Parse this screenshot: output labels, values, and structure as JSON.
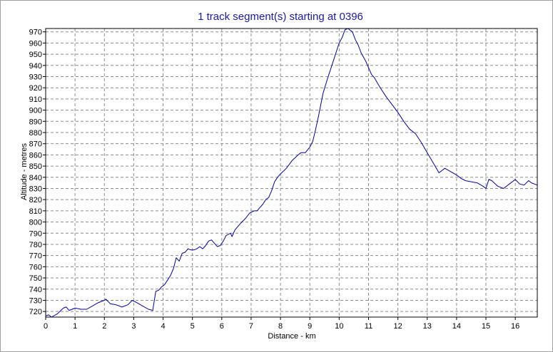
{
  "chart_data": {
    "type": "line",
    "title": "1 track segment(s) starting at 0396",
    "xlabel": "Distance - km",
    "ylabel": "Altitude - metres",
    "xlim": [
      0,
      16.75
    ],
    "ylim": [
      715,
      973
    ],
    "x_ticks": [
      0,
      1,
      2,
      3,
      4,
      5,
      6,
      7,
      8,
      9,
      10,
      11,
      12,
      13,
      14,
      15,
      16
    ],
    "y_ticks": [
      720,
      730,
      740,
      750,
      760,
      770,
      780,
      790,
      800,
      810,
      820,
      830,
      840,
      850,
      860,
      870,
      880,
      890,
      900,
      910,
      920,
      930,
      940,
      950,
      960,
      970
    ],
    "grid": true,
    "colors": {
      "line": "#0000aa",
      "title": "#1a1aa8",
      "grid": "#8c8c8c",
      "axis": "#000000"
    },
    "series": [
      {
        "x": [
          0.0,
          0.1,
          0.2,
          0.4,
          0.6,
          0.7,
          0.8,
          1.0,
          1.2,
          1.4,
          1.6,
          1.8,
          2.0,
          2.05,
          2.2,
          2.4,
          2.6,
          2.8,
          2.95,
          3.1,
          3.3,
          3.5,
          3.65,
          3.75,
          3.85,
          3.95,
          4.05,
          4.15,
          4.25,
          4.35,
          4.45,
          4.55,
          4.65,
          4.75,
          4.85,
          4.95,
          5.05,
          5.15,
          5.25,
          5.35,
          5.45,
          5.55,
          5.65,
          5.75,
          5.85,
          5.95,
          6.05,
          6.15,
          6.3,
          6.35,
          6.45,
          6.55,
          6.65,
          6.8,
          6.95,
          7.1,
          7.2,
          7.3,
          7.4,
          7.5,
          7.6,
          7.7,
          7.8,
          7.9,
          8.0,
          8.2,
          8.4,
          8.6,
          8.7,
          8.85,
          9.0,
          9.1,
          9.2,
          9.3,
          9.45,
          9.6,
          9.75,
          9.9,
          10.0,
          10.1,
          10.2,
          10.3,
          10.35,
          10.45,
          10.55,
          10.65,
          10.75,
          10.9,
          11.0,
          11.1,
          11.2,
          11.4,
          11.6,
          11.8,
          12.0,
          12.2,
          12.4,
          12.6,
          12.8,
          13.0,
          13.2,
          13.4,
          13.6,
          13.8,
          14.0,
          14.15,
          14.3,
          14.5,
          14.7,
          14.9,
          15.0,
          15.1,
          15.2,
          15.4,
          15.6,
          15.8,
          16.0,
          16.15,
          16.3,
          16.45,
          16.55,
          16.75
        ],
        "y": [
          716,
          717,
          715,
          718,
          723,
          724,
          721,
          723,
          722,
          722,
          725,
          728,
          730,
          731,
          727,
          726,
          724,
          726,
          730,
          728,
          725,
          722,
          721,
          738,
          739,
          742,
          744,
          748,
          752,
          758,
          768,
          765,
          772,
          773,
          776,
          775,
          775,
          776,
          778,
          776,
          779,
          783,
          784,
          781,
          778,
          779,
          783,
          788,
          790,
          787,
          793,
          796,
          799,
          803,
          808,
          810,
          810,
          813,
          816,
          820,
          822,
          828,
          836,
          840,
          843,
          848,
          855,
          860,
          862,
          862,
          867,
          872,
          883,
          895,
          915,
          928,
          940,
          952,
          960,
          965,
          972,
          973,
          972,
          970,
          963,
          958,
          951,
          944,
          938,
          932,
          929,
          920,
          912,
          905,
          898,
          890,
          883,
          879,
          871,
          862,
          853,
          844,
          848,
          845,
          842,
          839,
          837,
          836,
          835,
          832,
          830,
          838,
          837,
          832,
          830,
          834,
          838,
          834,
          833,
          837,
          835,
          833
        ]
      }
    ]
  }
}
